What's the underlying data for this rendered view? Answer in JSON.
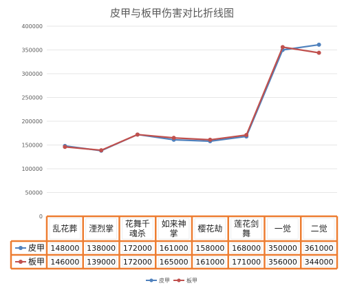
{
  "chart_data": {
    "type": "line",
    "title": "皮甲与板甲伤害对比折线图",
    "categories": [
      "乱花葬",
      "湮烈掌",
      "花舞千魂杀",
      "如来神掌",
      "樱花劫",
      "莲花剑舞",
      "一觉",
      "二觉"
    ],
    "category_lines": [
      [
        "乱花葬"
      ],
      [
        "湮烈掌"
      ],
      [
        "花舞千",
        "魂杀"
      ],
      [
        "如来神",
        "掌"
      ],
      [
        "樱花劫"
      ],
      [
        "莲花剑",
        "舞"
      ],
      [
        "一觉"
      ],
      [
        "二觉"
      ]
    ],
    "series": [
      {
        "name": "皮甲",
        "color": "#4f81bd",
        "values": [
          148000,
          138000,
          172000,
          161000,
          158000,
          168000,
          350000,
          361000
        ]
      },
      {
        "name": "板甲",
        "color": "#c0504d",
        "values": [
          146000,
          139000,
          172000,
          165000,
          161000,
          171000,
          356000,
          344000
        ]
      }
    ],
    "ylim": [
      0,
      400000
    ],
    "yticks": [
      "0",
      "50000",
      "100000",
      "150000",
      "200000",
      "250000",
      "300000",
      "350000",
      "400000"
    ],
    "grid": true,
    "legend": "bottom",
    "data_table": true,
    "table_border_color": "#ed7d31"
  }
}
